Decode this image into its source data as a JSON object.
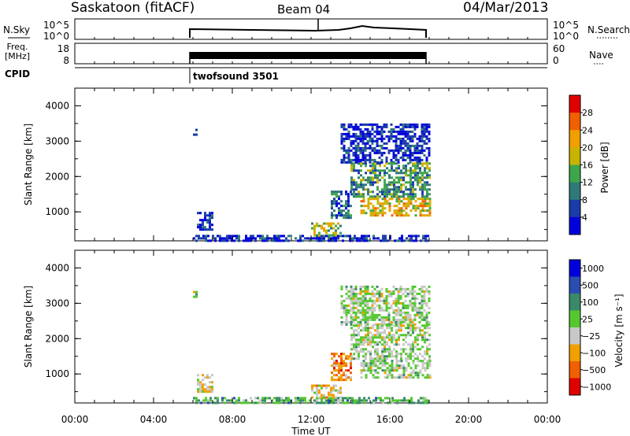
{
  "header": {
    "station": "Saskatoon (fitACF)",
    "beam": "Beam 04",
    "date": "04/Mar/2013"
  },
  "strips": {
    "nsky": {
      "label": "N.Sky",
      "ticks_left": [
        "10^5",
        "10^0"
      ],
      "ticks_right": [
        "10^5",
        "10^0"
      ],
      "right_label": "N.Search"
    },
    "freq": {
      "label_line1": "Freq.",
      "label_line2": "[MHz]",
      "ticks_left": [
        "18",
        "8"
      ],
      "ticks_right": [
        "60",
        "0"
      ],
      "right_label": "Nave"
    },
    "cpid": {
      "label": "CPID",
      "value": "twofsound 3501"
    }
  },
  "colors": {
    "power": [
      "#0000dc",
      "#1a3ca8",
      "#2f7a78",
      "#3ea64a",
      "#c8b400",
      "#f0a000",
      "#f06000",
      "#e00000"
    ],
    "velocity": [
      "#0000dc",
      "#2a4db0",
      "#3a8a6a",
      "#55c830",
      "#c8c8c8",
      "#f0a000",
      "#f06000",
      "#e00000"
    ]
  },
  "chart_data": [
    {
      "type": "heatmap",
      "name": "power",
      "xlabel": "",
      "ylabel": "Slant Range [km]",
      "xlim": [
        0,
        24
      ],
      "ylim": [
        180,
        4500
      ],
      "yticks": [
        "1000",
        "2000",
        "3000",
        "4000"
      ],
      "colorbar": {
        "label": "Power [dB]",
        "ticks": [
          "4",
          "8",
          "12",
          "16",
          "20",
          "24",
          "28"
        ],
        "range": [
          0,
          32
        ]
      },
      "regions": [
        {
          "x0": 6.0,
          "x1": 18.0,
          "y0": 180,
          "y1": 350,
          "value": 6
        },
        {
          "x0": 6.0,
          "x1": 6.2,
          "y0": 3200,
          "y1": 3350,
          "value": 6
        },
        {
          "x0": 6.2,
          "x1": 7.0,
          "y0": 500,
          "y1": 1000,
          "value": 8
        },
        {
          "x0": 12.0,
          "x1": 13.5,
          "y0": 300,
          "y1": 700,
          "value": 18
        },
        {
          "x0": 13.0,
          "x1": 14.0,
          "y0": 800,
          "y1": 1600,
          "value": 12
        },
        {
          "x0": 13.5,
          "x1": 18.0,
          "y0": 2400,
          "y1": 3500,
          "value": 8
        },
        {
          "x0": 14.0,
          "x1": 18.0,
          "y0": 1800,
          "y1": 2400,
          "value": 14
        },
        {
          "x0": 14.0,
          "x1": 18.0,
          "y0": 1400,
          "y1": 1800,
          "value": 16
        },
        {
          "x0": 14.5,
          "x1": 18.0,
          "y0": 900,
          "y1": 1400,
          "value": 24
        }
      ]
    },
    {
      "type": "heatmap",
      "name": "velocity",
      "xlabel": "Time UT",
      "ylabel": "Slant Range [km]",
      "xlim": [
        0,
        24
      ],
      "ylim": [
        180,
        4500
      ],
      "yticks": [
        "1000",
        "2000",
        "3000",
        "4000"
      ],
      "xticks": [
        "00:00",
        "04:00",
        "08:00",
        "12:00",
        "16:00",
        "20:00",
        "00:00"
      ],
      "colorbar": {
        "label": "Velocity [m s⁻¹]",
        "ticks": [
          "1000",
          "500",
          "100",
          "25",
          "−25",
          "−100",
          "−500",
          "−1000"
        ]
      },
      "regions": [
        {
          "x0": 6.0,
          "x1": 18.0,
          "y0": 180,
          "y1": 350,
          "value": 3
        },
        {
          "x0": 6.0,
          "x1": 6.2,
          "y0": 3200,
          "y1": 3350,
          "value": 4
        },
        {
          "x0": 6.2,
          "x1": 7.0,
          "y0": 500,
          "y1": 1000,
          "value": 5
        },
        {
          "x0": 12.0,
          "x1": 13.5,
          "y0": 300,
          "y1": 700,
          "value": 5
        },
        {
          "x0": 13.0,
          "x1": 14.0,
          "y0": 800,
          "y1": 1600,
          "value": 6
        },
        {
          "x0": 13.5,
          "x1": 18.0,
          "y0": 2400,
          "y1": 3500,
          "value": 4
        },
        {
          "x0": 14.0,
          "x1": 18.0,
          "y0": 1800,
          "y1": 2400,
          "value": 4
        },
        {
          "x0": 14.0,
          "x1": 18.0,
          "y0": 1400,
          "y1": 1800,
          "value": 4
        },
        {
          "x0": 14.5,
          "x1": 18.0,
          "y0": 900,
          "y1": 1400,
          "value": 4
        }
      ]
    }
  ]
}
